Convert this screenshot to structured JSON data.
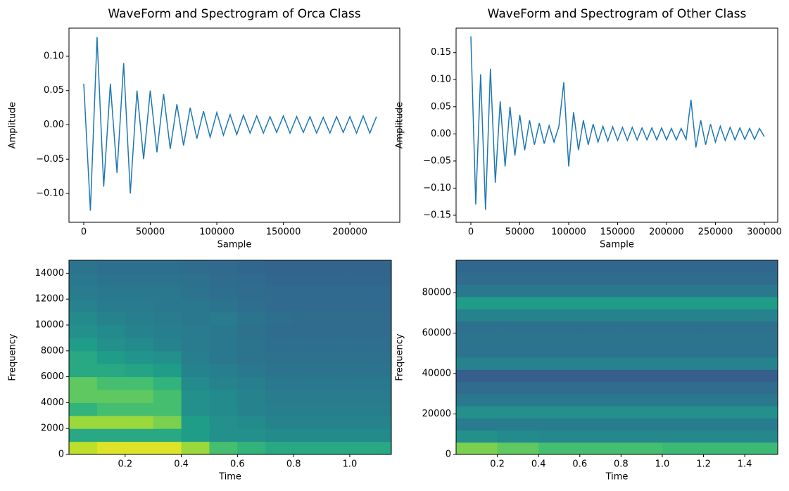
{
  "chart_data": [
    {
      "type": "line",
      "title": "WaveForm and Spectrogram of Orca Class",
      "xlabel": "Sample",
      "ylabel": "Amplitude",
      "color": "#1f77b4",
      "xlim": [
        -11100,
        237500
      ],
      "ylim": [
        -0.142,
        0.141
      ],
      "xticks": [
        0,
        50000,
        100000,
        150000,
        200000
      ],
      "yticks": [
        {
          "value": -0.1,
          "label": "−0.10"
        },
        {
          "value": -0.05,
          "label": "−0.05"
        },
        {
          "value": 0,
          "label": "0.00"
        },
        {
          "value": 0.05,
          "label": "0.05"
        },
        {
          "value": 0.1,
          "label": "0.10"
        }
      ],
      "x": [
        0,
        5000,
        10000,
        15000,
        20000,
        25000,
        30000,
        35000,
        40000,
        45000,
        50000,
        55000,
        60000,
        65000,
        70000,
        75000,
        80000,
        85000,
        90000,
        95000,
        100000,
        105000,
        110000,
        115000,
        120000,
        125000,
        130000,
        135000,
        140000,
        145000,
        150000,
        155000,
        160000,
        165000,
        170000,
        175000,
        180000,
        185000,
        190000,
        195000,
        200000,
        205000,
        210000,
        215000,
        220000
      ],
      "values": [
        0.06,
        -0.125,
        0.128,
        -0.09,
        0.06,
        -0.07,
        0.09,
        -0.1,
        0.05,
        -0.05,
        0.05,
        -0.04,
        0.045,
        -0.035,
        0.03,
        -0.03,
        0.025,
        -0.02,
        0.02,
        -0.018,
        0.018,
        -0.015,
        0.015,
        -0.014,
        0.014,
        -0.012,
        0.013,
        -0.012,
        0.012,
        -0.011,
        0.013,
        -0.012,
        0.012,
        -0.011,
        0.012,
        -0.012,
        0.011,
        -0.012,
        0.012,
        -0.011,
        0.012,
        -0.012,
        0.013,
        -0.012,
        0.012
      ]
    },
    {
      "type": "line",
      "title": "WaveForm and Spectrogram of Other Class",
      "xlabel": "Sample",
      "ylabel": "Amplitude",
      "color": "#1f77b4",
      "xlim": [
        -15100,
        313700
      ],
      "ylim": [
        -0.163,
        0.195
      ],
      "xticks": [
        0,
        50000,
        100000,
        150000,
        200000,
        250000,
        300000
      ],
      "yticks": [
        {
          "value": -0.15,
          "label": "−0.15"
        },
        {
          "value": -0.1,
          "label": "−0.10"
        },
        {
          "value": -0.05,
          "label": "−0.05"
        },
        {
          "value": 0,
          "label": "0.00"
        },
        {
          "value": 0.05,
          "label": "0.05"
        },
        {
          "value": 0.1,
          "label": "0.10"
        },
        {
          "value": 0.15,
          "label": "0.15"
        }
      ],
      "x": [
        0,
        5000,
        10000,
        15000,
        20000,
        25000,
        30000,
        35000,
        40000,
        45000,
        50000,
        55000,
        60000,
        65000,
        70000,
        75000,
        80000,
        85000,
        90000,
        95000,
        100000,
        105000,
        110000,
        115000,
        120000,
        125000,
        130000,
        135000,
        140000,
        145000,
        150000,
        155000,
        160000,
        165000,
        170000,
        175000,
        180000,
        185000,
        190000,
        195000,
        200000,
        205000,
        210000,
        215000,
        220000,
        225000,
        230000,
        235000,
        240000,
        245000,
        250000,
        255000,
        260000,
        265000,
        270000,
        275000,
        280000,
        285000,
        290000,
        295000,
        300000
      ],
      "values": [
        0.18,
        -0.13,
        0.11,
        -0.14,
        0.12,
        -0.09,
        0.06,
        -0.06,
        0.05,
        -0.04,
        0.035,
        -0.03,
        0.025,
        -0.02,
        0.02,
        -0.018,
        0.015,
        -0.015,
        0.014,
        0.095,
        -0.06,
        0.04,
        -0.03,
        0.025,
        -0.02,
        0.018,
        -0.015,
        0.014,
        -0.013,
        0.013,
        -0.012,
        0.012,
        -0.012,
        0.012,
        -0.011,
        0.011,
        -0.011,
        0.011,
        -0.011,
        0.011,
        -0.011,
        0.01,
        -0.011,
        0.01,
        -0.01,
        0.063,
        -0.025,
        0.025,
        -0.02,
        0.018,
        -0.015,
        0.014,
        -0.012,
        0.012,
        -0.011,
        0.011,
        -0.01,
        0.01,
        -0.01,
        0.01,
        -0.005
      ]
    },
    {
      "type": "heatmap",
      "xlabel": "Time",
      "ylabel": "Frequency",
      "colormap": "viridis",
      "xlim": [
        0,
        1.148
      ],
      "ylim": [
        0,
        15000
      ],
      "xticks": [
        0.2,
        0.4,
        0.6,
        0.8,
        {
          "value": 1.0,
          "label": "1.0"
        }
      ],
      "yticks": [
        0,
        2000,
        4000,
        6000,
        8000,
        10000,
        12000,
        14000
      ],
      "xbins": [
        0,
        0.1,
        0.2,
        0.3,
        0.4,
        0.5,
        0.6,
        0.7,
        0.8,
        0.9,
        1.0,
        1.1,
        1.148
      ],
      "ybins": [
        0,
        1000,
        2000,
        3000,
        4000,
        5000,
        6000,
        7000,
        8000,
        9000,
        10000,
        11000,
        12000,
        13000,
        14000,
        15000
      ],
      "z": [
        [
          0.9,
          0.95,
          0.95,
          0.95,
          0.85,
          0.7,
          0.65,
          0.6,
          0.6,
          0.6,
          0.6,
          0.6
        ],
        [
          0.6,
          0.6,
          0.6,
          0.6,
          0.55,
          0.5,
          0.5,
          0.48,
          0.48,
          0.48,
          0.48,
          0.48
        ],
        [
          0.85,
          0.85,
          0.85,
          0.8,
          0.55,
          0.5,
          0.48,
          0.45,
          0.45,
          0.45,
          0.45,
          0.45
        ],
        [
          0.65,
          0.7,
          0.7,
          0.7,
          0.5,
          0.48,
          0.45,
          0.43,
          0.43,
          0.43,
          0.43,
          0.43
        ],
        [
          0.75,
          0.75,
          0.75,
          0.7,
          0.5,
          0.48,
          0.45,
          0.42,
          0.42,
          0.42,
          0.42,
          0.42
        ],
        [
          0.75,
          0.7,
          0.7,
          0.65,
          0.48,
          0.45,
          0.43,
          0.4,
          0.4,
          0.4,
          0.4,
          0.4
        ],
        [
          0.6,
          0.6,
          0.58,
          0.55,
          0.45,
          0.43,
          0.4,
          0.38,
          0.38,
          0.38,
          0.38,
          0.38
        ],
        [
          0.6,
          0.55,
          0.52,
          0.5,
          0.43,
          0.4,
          0.38,
          0.37,
          0.37,
          0.37,
          0.37,
          0.37
        ],
        [
          0.55,
          0.5,
          0.48,
          0.45,
          0.42,
          0.4,
          0.38,
          0.36,
          0.36,
          0.36,
          0.36,
          0.36
        ],
        [
          0.5,
          0.48,
          0.45,
          0.43,
          0.42,
          0.4,
          0.37,
          0.35,
          0.35,
          0.35,
          0.35,
          0.35
        ],
        [
          0.48,
          0.45,
          0.43,
          0.42,
          0.4,
          0.42,
          0.38,
          0.36,
          0.35,
          0.35,
          0.35,
          0.35
        ],
        [
          0.45,
          0.42,
          0.42,
          0.4,
          0.4,
          0.38,
          0.36,
          0.34,
          0.34,
          0.34,
          0.34,
          0.34
        ],
        [
          0.42,
          0.4,
          0.4,
          0.4,
          0.38,
          0.36,
          0.35,
          0.34,
          0.34,
          0.34,
          0.34,
          0.34
        ],
        [
          0.4,
          0.38,
          0.38,
          0.38,
          0.37,
          0.35,
          0.34,
          0.33,
          0.33,
          0.33,
          0.33,
          0.33
        ],
        [
          0.38,
          0.36,
          0.36,
          0.36,
          0.35,
          0.34,
          0.33,
          0.32,
          0.32,
          0.32,
          0.32,
          0.32
        ]
      ]
    },
    {
      "type": "heatmap",
      "xlabel": "Time",
      "ylabel": "Frequency",
      "colormap": "viridis",
      "xlim": [
        0,
        1.56
      ],
      "ylim": [
        0,
        96000
      ],
      "xticks": [
        0.2,
        0.4,
        0.6,
        0.8,
        {
          "value": 1.0,
          "label": "1.0"
        },
        1.2,
        1.4
      ],
      "yticks": [
        0,
        20000,
        40000,
        60000,
        80000
      ],
      "xbins": [
        0,
        0.2,
        0.4,
        0.6,
        0.8,
        1.0,
        1.2,
        1.4,
        1.56
      ],
      "ybins": [
        0,
        6000,
        12000,
        18000,
        24000,
        30000,
        36000,
        42000,
        48000,
        54000,
        60000,
        66000,
        72000,
        78000,
        84000,
        90000,
        96000
      ],
      "z": [
        [
          0.8,
          0.75,
          0.7,
          0.7,
          0.7,
          0.68,
          0.68,
          0.68
        ],
        [
          0.5,
          0.48,
          0.47,
          0.47,
          0.47,
          0.47,
          0.47,
          0.47
        ],
        [
          0.42,
          0.42,
          0.42,
          0.42,
          0.42,
          0.42,
          0.42,
          0.42
        ],
        [
          0.5,
          0.5,
          0.5,
          0.5,
          0.5,
          0.5,
          0.5,
          0.5
        ],
        [
          0.4,
          0.4,
          0.4,
          0.4,
          0.4,
          0.4,
          0.4,
          0.4
        ],
        [
          0.35,
          0.35,
          0.35,
          0.35,
          0.35,
          0.35,
          0.35,
          0.35
        ],
        [
          0.3,
          0.3,
          0.3,
          0.3,
          0.3,
          0.3,
          0.3,
          0.3
        ],
        [
          0.45,
          0.45,
          0.45,
          0.45,
          0.45,
          0.45,
          0.45,
          0.45
        ],
        [
          0.38,
          0.38,
          0.38,
          0.38,
          0.38,
          0.38,
          0.38,
          0.38
        ],
        [
          0.38,
          0.38,
          0.38,
          0.38,
          0.38,
          0.38,
          0.38,
          0.38
        ],
        [
          0.37,
          0.37,
          0.37,
          0.37,
          0.37,
          0.37,
          0.37,
          0.37
        ],
        [
          0.45,
          0.45,
          0.45,
          0.45,
          0.45,
          0.45,
          0.45,
          0.45
        ],
        [
          0.55,
          0.55,
          0.55,
          0.55,
          0.55,
          0.55,
          0.55,
          0.55
        ],
        [
          0.4,
          0.4,
          0.4,
          0.4,
          0.4,
          0.4,
          0.4,
          0.4
        ],
        [
          0.35,
          0.35,
          0.35,
          0.35,
          0.35,
          0.35,
          0.35,
          0.35
        ],
        [
          0.33,
          0.33,
          0.33,
          0.33,
          0.33,
          0.33,
          0.33,
          0.33
        ]
      ]
    }
  ]
}
